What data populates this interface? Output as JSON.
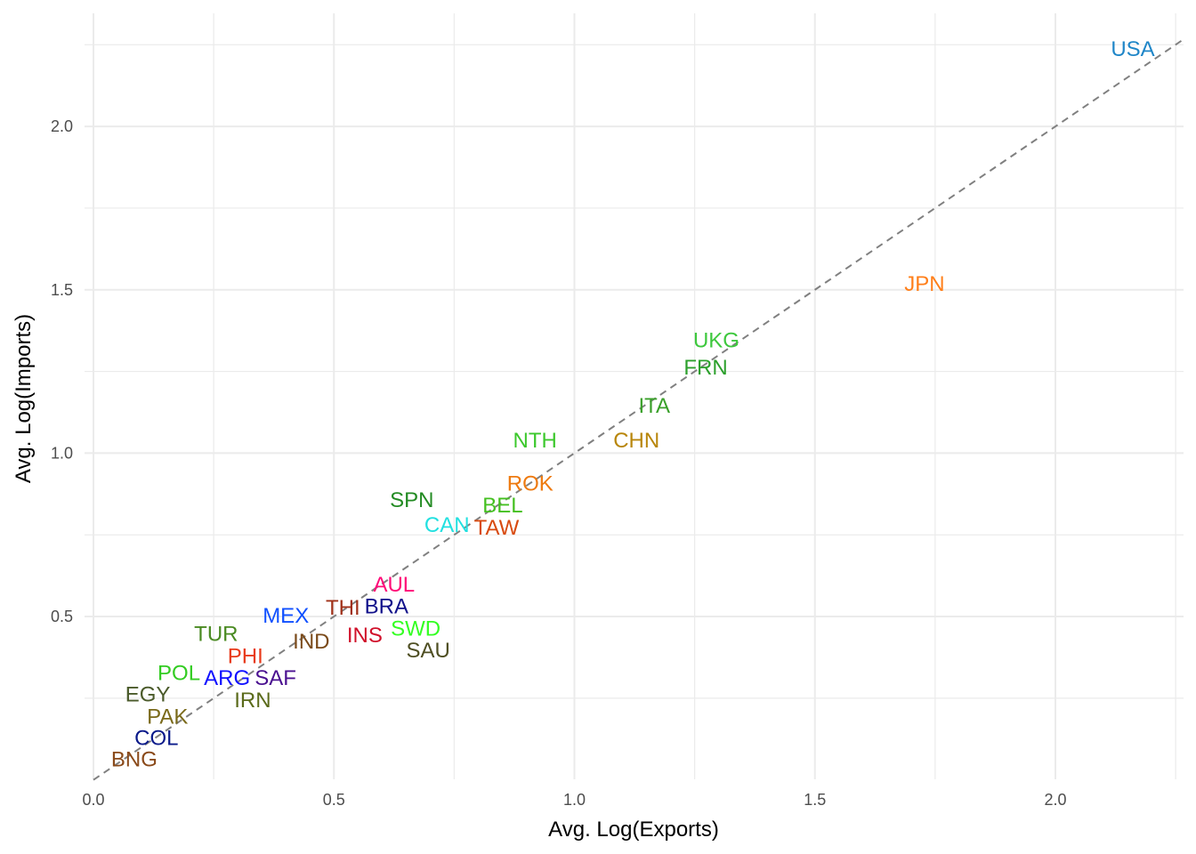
{
  "chart_data": {
    "type": "scatter",
    "title": "",
    "xlabel": "Avg. Log(Exports)",
    "ylabel": "Avg. Log(Imports)",
    "xlim": [
      -0.02,
      2.27
    ],
    "ylim": [
      0,
      2.35
    ],
    "xticks": [
      "0.0",
      "0.5",
      "1.0",
      "1.5",
      "2.0"
    ],
    "yticks": [
      "0.5",
      "1.0",
      "1.5",
      "2.0"
    ],
    "grid": true,
    "reference_line": {
      "type": "y=x",
      "style": "dashed",
      "color": "#808080"
    },
    "points": [
      {
        "label": "USA",
        "x": 2.161,
        "y": 2.237,
        "color": "#1f86c8"
      },
      {
        "label": "JPN",
        "x": 1.728,
        "y": 1.518,
        "color": "#ff7f1a"
      },
      {
        "label": "UKG",
        "x": 1.295,
        "y": 1.346,
        "color": "#3ec83e"
      },
      {
        "label": "FRN",
        "x": 1.273,
        "y": 1.262,
        "color": "#2ca02c"
      },
      {
        "label": "ITA",
        "x": 1.166,
        "y": 1.145,
        "color": "#3aa02a"
      },
      {
        "label": "NTH",
        "x": 0.918,
        "y": 1.039,
        "color": "#3cc82c"
      },
      {
        "label": "CHN",
        "x": 1.129,
        "y": 1.039,
        "color": "#b8860b"
      },
      {
        "label": "SPN",
        "x": 0.662,
        "y": 0.857,
        "color": "#238b23"
      },
      {
        "label": "BEL",
        "x": 0.851,
        "y": 0.865,
        "color": "#44c020"
      },
      {
        "label": "ROK",
        "x": 0.908,
        "y": 0.873,
        "color": "#ee7a10"
      },
      {
        "label": "CAN",
        "x": 0.735,
        "y": 0.781,
        "color": "#22e0e0"
      },
      {
        "label": "TAW",
        "x": 0.838,
        "y": 0.781,
        "color": "#d84a10"
      },
      {
        "label": "AUL",
        "x": 0.625,
        "y": 0.58,
        "color": "#ff0a78"
      },
      {
        "label": "THI",
        "x": 0.527,
        "y": 0.527,
        "color": "#a03018"
      },
      {
        "label": "BRA",
        "x": 0.601,
        "y": 0.508,
        "color": "#10108a"
      },
      {
        "label": "SWD",
        "x": 0.67,
        "y": 0.481,
        "color": "#33ff22"
      },
      {
        "label": "INS",
        "x": 0.564,
        "y": 0.443,
        "color": "#d0102a"
      },
      {
        "label": "SAU",
        "x": 0.696,
        "y": 0.421,
        "color": "#4e4e22"
      },
      {
        "label": "MEX",
        "x": 0.4,
        "y": 0.503,
        "color": "#1050ff"
      },
      {
        "label": "IND",
        "x": 0.453,
        "y": 0.424,
        "color": "#7a4a1a"
      },
      {
        "label": "TUR",
        "x": 0.255,
        "y": 0.436,
        "color": "#4a8a22"
      },
      {
        "label": "PHI",
        "x": 0.316,
        "y": 0.359,
        "color": "#e83a1a"
      },
      {
        "label": "SAF",
        "x": 0.357,
        "y": 0.332,
        "color": "#4a1090"
      },
      {
        "label": "POL",
        "x": 0.194,
        "y": 0.313,
        "color": "#33cc22"
      },
      {
        "label": "ARG",
        "x": 0.283,
        "y": 0.31,
        "color": "#1010ff"
      },
      {
        "label": "IRN",
        "x": 0.331,
        "y": 0.258,
        "color": "#5a6a1a"
      },
      {
        "label": "EGY",
        "x": 0.113,
        "y": 0.217,
        "color": "#4a5a2a"
      },
      {
        "label": "COL",
        "x": 0.131,
        "y": 0.169,
        "color": "#0a1a8a"
      },
      {
        "label": "PAK",
        "x": 0.154,
        "y": 0.169,
        "color": "#7a6a1a"
      },
      {
        "label": "BNG",
        "x": 0.085,
        "y": 0.106,
        "color": "#8a4a1a"
      }
    ]
  }
}
